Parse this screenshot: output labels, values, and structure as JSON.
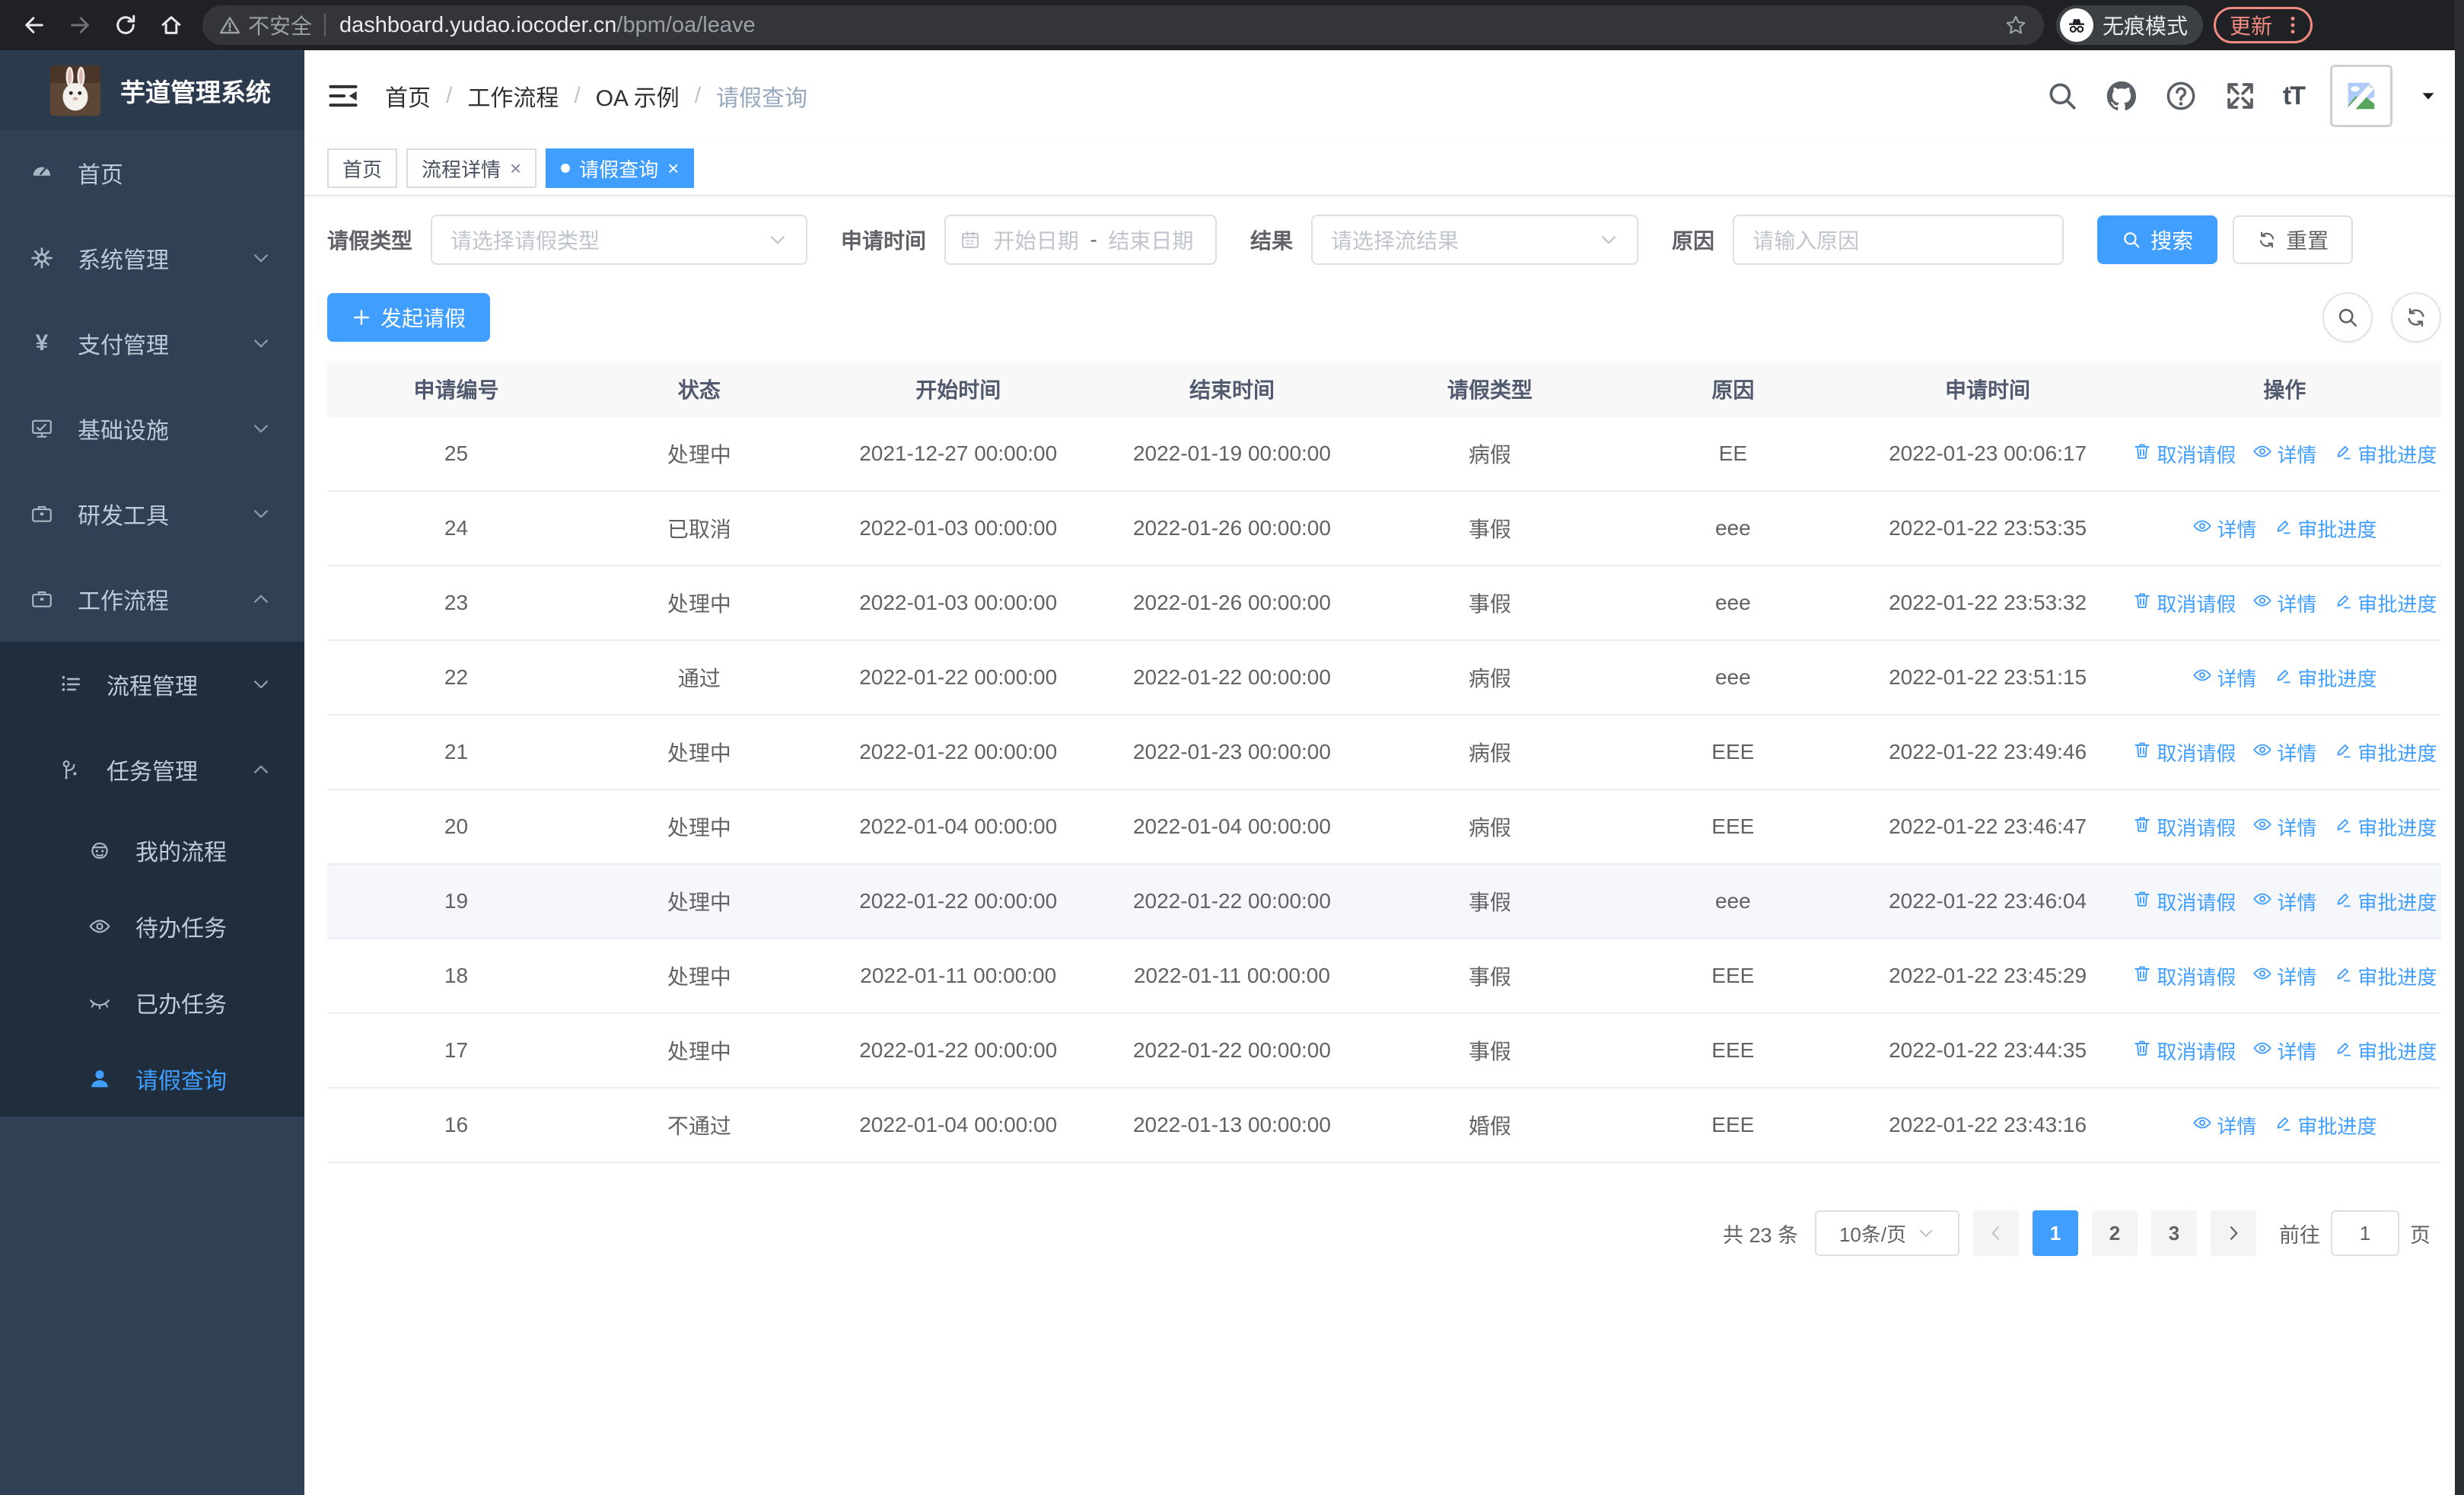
{
  "browser": {
    "security_label": "不安全",
    "url_domain": "dashboard.yudao.iocoder.cn",
    "url_path": "/bpm/oa/leave",
    "incognito_label": "无痕模式",
    "update_label": "更新",
    "accent_color": "#f28b82"
  },
  "sidebar": {
    "app_title": "芋道管理系统",
    "items": [
      {
        "label": "首页",
        "icon": "dashboard-icon",
        "depth": 0
      },
      {
        "label": "系统管理",
        "icon": "gear-icon",
        "depth": 0,
        "chevron": "down"
      },
      {
        "label": "支付管理",
        "icon": "yen-icon",
        "depth": 0,
        "chevron": "down"
      },
      {
        "label": "基础设施",
        "icon": "monitor-icon",
        "depth": 0,
        "chevron": "down"
      },
      {
        "label": "研发工具",
        "icon": "briefcase-icon",
        "depth": 0,
        "chevron": "down"
      },
      {
        "label": "工作流程",
        "icon": "briefcase-icon",
        "depth": 0,
        "chevron": "up"
      },
      {
        "label": "流程管理",
        "icon": "list-icon",
        "depth": 1,
        "chevron": "down",
        "submenu": true
      },
      {
        "label": "任务管理",
        "icon": "flow-icon",
        "depth": 1,
        "chevron": "up",
        "submenu": true
      },
      {
        "label": "我的流程",
        "icon": "robot-icon",
        "depth": 2,
        "submenu": true
      },
      {
        "label": "待办任务",
        "icon": "eye-icon",
        "depth": 2,
        "submenu": true
      },
      {
        "label": "已办任务",
        "icon": "eye-closed-icon",
        "depth": 2,
        "submenu": true
      },
      {
        "label": "请假查询",
        "icon": "user-icon",
        "depth": 2,
        "submenu": true,
        "active": true
      }
    ]
  },
  "navbar": {
    "breadcrumb": [
      {
        "label": "首页"
      },
      {
        "label": "工作流程"
      },
      {
        "label": "OA 示例"
      },
      {
        "label": "请假查询",
        "current": true
      }
    ]
  },
  "tabs": [
    {
      "label": "首页"
    },
    {
      "label": "流程详情",
      "closable": true
    },
    {
      "label": "请假查询",
      "closable": true,
      "active": true
    }
  ],
  "filters": {
    "leave_type_label": "请假类型",
    "leave_type_placeholder": "请选择请假类型",
    "apply_time_label": "申请时间",
    "date_start_placeholder": "开始日期",
    "date_separator": "-",
    "date_end_placeholder": "结束日期",
    "result_label": "结果",
    "result_placeholder": "请选择流结果",
    "reason_label": "原因",
    "reason_placeholder": "请输入原因",
    "search_label": "搜索",
    "reset_label": "重置"
  },
  "toolbar": {
    "create_label": "发起请假"
  },
  "table": {
    "columns": [
      "申请编号",
      "状态",
      "开始时间",
      "结束时间",
      "请假类型",
      "原因",
      "申请时间",
      "操作"
    ],
    "action_labels": {
      "cancel": "取消请假",
      "detail": "详情",
      "progress": "审批进度"
    },
    "rows": [
      {
        "id": "25",
        "status": "处理中",
        "start": "2021-12-27 00:00:00",
        "end": "2022-01-19 00:00:00",
        "type": "病假",
        "reason": "EE",
        "applied": "2022-01-23 00:06:17",
        "cancellable": true
      },
      {
        "id": "24",
        "status": "已取消",
        "start": "2022-01-03 00:00:00",
        "end": "2022-01-26 00:00:00",
        "type": "事假",
        "reason": "eee",
        "applied": "2022-01-22 23:53:35",
        "cancellable": false
      },
      {
        "id": "23",
        "status": "处理中",
        "start": "2022-01-03 00:00:00",
        "end": "2022-01-26 00:00:00",
        "type": "事假",
        "reason": "eee",
        "applied": "2022-01-22 23:53:32",
        "cancellable": true
      },
      {
        "id": "22",
        "status": "通过",
        "start": "2022-01-22 00:00:00",
        "end": "2022-01-22 00:00:00",
        "type": "病假",
        "reason": "eee",
        "applied": "2022-01-22 23:51:15",
        "cancellable": false
      },
      {
        "id": "21",
        "status": "处理中",
        "start": "2022-01-22 00:00:00",
        "end": "2022-01-23 00:00:00",
        "type": "病假",
        "reason": "EEE",
        "applied": "2022-01-22 23:49:46",
        "cancellable": true
      },
      {
        "id": "20",
        "status": "处理中",
        "start": "2022-01-04 00:00:00",
        "end": "2022-01-04 00:00:00",
        "type": "病假",
        "reason": "EEE",
        "applied": "2022-01-22 23:46:47",
        "cancellable": true
      },
      {
        "id": "19",
        "status": "处理中",
        "start": "2022-01-22 00:00:00",
        "end": "2022-01-22 00:00:00",
        "type": "事假",
        "reason": "eee",
        "applied": "2022-01-22 23:46:04",
        "cancellable": true,
        "highlighted": true
      },
      {
        "id": "18",
        "status": "处理中",
        "start": "2022-01-11 00:00:00",
        "end": "2022-01-11 00:00:00",
        "type": "事假",
        "reason": "EEE",
        "applied": "2022-01-22 23:45:29",
        "cancellable": true
      },
      {
        "id": "17",
        "status": "处理中",
        "start": "2022-01-22 00:00:00",
        "end": "2022-01-22 00:00:00",
        "type": "事假",
        "reason": "EEE",
        "applied": "2022-01-22 23:44:35",
        "cancellable": true
      },
      {
        "id": "16",
        "status": "不通过",
        "start": "2022-01-04 00:00:00",
        "end": "2022-01-13 00:00:00",
        "type": "婚假",
        "reason": "EEE",
        "applied": "2022-01-22 23:43:16",
        "cancellable": false
      }
    ]
  },
  "pagination": {
    "total_label": "共 23 条",
    "page_size": "10条/页",
    "pages": [
      "1",
      "2",
      "3"
    ],
    "active_page": "1",
    "goto_label": "前往",
    "goto_value": "1",
    "unit_label": "页"
  },
  "colors": {
    "primary": "#409eff",
    "sidebar_bg": "#304156",
    "sidebar_submenu_bg": "#1f2d3d"
  }
}
